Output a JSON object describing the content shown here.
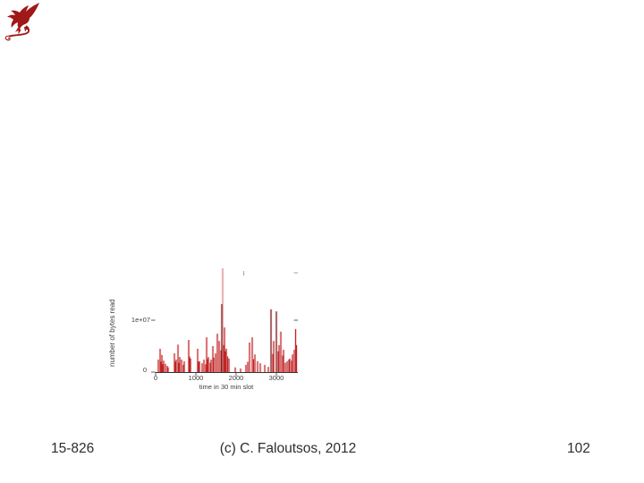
{
  "logo": {
    "label": "CMU SCS dragon logo",
    "color": "#a01818"
  },
  "footer": {
    "course": "15-826",
    "copyright": "(c) C. Faloutsos, 2012",
    "page": "102"
  },
  "chart_data": {
    "type": "bar",
    "title": "",
    "ylabel": "number of bytes read",
    "xlabel": "time in 30 min slot",
    "xlim": [
      0,
      3500
    ],
    "ylim": [
      0,
      20000000
    ],
    "xticks": [
      0,
      1000,
      2000,
      3000
    ],
    "xtick_labels": [
      "0",
      "1000",
      "2000",
      "3000"
    ],
    "yticks": [
      0,
      10000000
    ],
    "ytick_labels": [
      "0",
      "1e+07"
    ],
    "legend": "none",
    "grid": false,
    "bar_color": "#bf2426",
    "tall_bar_color": "#6d0f12",
    "glow_color": "#f2b6b6",
    "axis_color": "#3a3434",
    "points": [
      [
        67,
        2400000
      ],
      [
        111,
        4500000
      ],
      [
        133,
        2000000
      ],
      [
        156,
        3300000
      ],
      [
        178,
        1500000
      ],
      [
        200,
        2200000
      ],
      [
        244,
        1600000
      ],
      [
        289,
        1200000
      ],
      [
        311,
        900000
      ],
      [
        467,
        3600000
      ],
      [
        489,
        2000000
      ],
      [
        511,
        2400000
      ],
      [
        556,
        5300000
      ],
      [
        578,
        1800000
      ],
      [
        600,
        2900000
      ],
      [
        644,
        2400000
      ],
      [
        689,
        1400000
      ],
      [
        711,
        2100000
      ],
      [
        822,
        6200000
      ],
      [
        844,
        3000000
      ],
      [
        867,
        2600000
      ],
      [
        1044,
        4500000
      ],
      [
        1067,
        2000000
      ],
      [
        1089,
        2100000
      ],
      [
        1156,
        1700000
      ],
      [
        1200,
        2400000
      ],
      [
        1244,
        1500000
      ],
      [
        1267,
        6700000
      ],
      [
        1289,
        2500000
      ],
      [
        1311,
        2900000
      ],
      [
        1356,
        1800000
      ],
      [
        1378,
        2400000
      ],
      [
        1422,
        5000000
      ],
      [
        1444,
        2800000
      ],
      [
        1489,
        3600000
      ],
      [
        1533,
        7400000
      ],
      [
        1578,
        6000000
      ],
      [
        1622,
        4200000
      ],
      [
        1644,
        13100000
      ],
      [
        1667,
        20000000,
        "faint"
      ],
      [
        1689,
        5200000
      ],
      [
        1711,
        8600000
      ],
      [
        1733,
        4000000
      ],
      [
        1756,
        4500000
      ],
      [
        1789,
        3000000
      ],
      [
        1822,
        2600000
      ],
      [
        1978,
        900000
      ],
      [
        2111,
        700000
      ],
      [
        2244,
        1400000
      ],
      [
        2289,
        2000000
      ],
      [
        2333,
        5700000
      ],
      [
        2400,
        6700000
      ],
      [
        2433,
        2500000
      ],
      [
        2467,
        3400000
      ],
      [
        2533,
        2100000
      ],
      [
        2600,
        1700000
      ],
      [
        2711,
        1400000
      ],
      [
        2800,
        1000000
      ],
      [
        2867,
        12100000
      ],
      [
        2911,
        3500000
      ],
      [
        2933,
        6000000
      ],
      [
        3000,
        11700000
      ],
      [
        3044,
        4000000
      ],
      [
        3067,
        5200000
      ],
      [
        3111,
        7800000
      ],
      [
        3156,
        3200000
      ],
      [
        3178,
        4300000
      ],
      [
        3222,
        1800000
      ],
      [
        3267,
        2100000
      ],
      [
        3311,
        2400000
      ],
      [
        3333,
        2600000
      ],
      [
        3378,
        2200000
      ],
      [
        3400,
        3400000
      ],
      [
        3444,
        4300000
      ],
      [
        3478,
        8300000
      ],
      [
        3500,
        5200000
      ]
    ]
  }
}
